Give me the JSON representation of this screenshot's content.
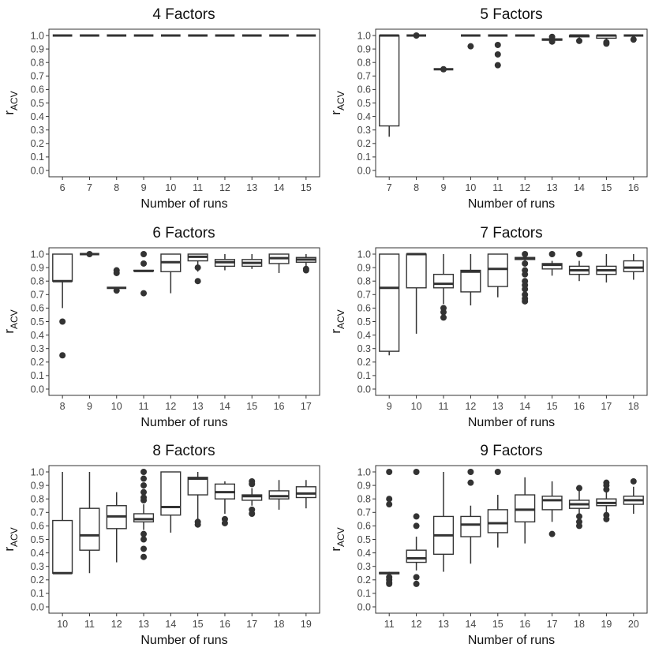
{
  "chart_data": [
    {
      "type": "box",
      "title": "4 Factors",
      "xlabel": "Number of runs",
      "ylabel": "r",
      "ylabel_subscript": "ACV",
      "ylim": [
        0,
        1
      ],
      "yticks": [
        "0.0",
        "0.1",
        "0.2",
        "0.3",
        "0.4",
        "0.5",
        "0.6",
        "0.7",
        "0.8",
        "0.9",
        "1.0"
      ],
      "categories": [
        "6",
        "7",
        "8",
        "9",
        "10",
        "11",
        "12",
        "13",
        "14",
        "15"
      ],
      "boxes": [
        {
          "q1": 1,
          "median": 1,
          "q3": 1,
          "whisker_low": 1,
          "whisker_high": 1,
          "outliers": []
        },
        {
          "q1": 1,
          "median": 1,
          "q3": 1,
          "whisker_low": 1,
          "whisker_high": 1,
          "outliers": []
        },
        {
          "q1": 1,
          "median": 1,
          "q3": 1,
          "whisker_low": 1,
          "whisker_high": 1,
          "outliers": []
        },
        {
          "q1": 1,
          "median": 1,
          "q3": 1,
          "whisker_low": 1,
          "whisker_high": 1,
          "outliers": []
        },
        {
          "q1": 1,
          "median": 1,
          "q3": 1,
          "whisker_low": 1,
          "whisker_high": 1,
          "outliers": []
        },
        {
          "q1": 1,
          "median": 1,
          "q3": 1,
          "whisker_low": 1,
          "whisker_high": 1,
          "outliers": []
        },
        {
          "q1": 1,
          "median": 1,
          "q3": 1,
          "whisker_low": 1,
          "whisker_high": 1,
          "outliers": []
        },
        {
          "q1": 1,
          "median": 1,
          "q3": 1,
          "whisker_low": 1,
          "whisker_high": 1,
          "outliers": []
        },
        {
          "q1": 1,
          "median": 1,
          "q3": 1,
          "whisker_low": 1,
          "whisker_high": 1,
          "outliers": []
        },
        {
          "q1": 1,
          "median": 1,
          "q3": 1,
          "whisker_low": 1,
          "whisker_high": 1,
          "outliers": []
        }
      ]
    },
    {
      "type": "box",
      "title": "5 Factors",
      "xlabel": "Number of runs",
      "ylabel": "r",
      "ylabel_subscript": "ACV",
      "ylim": [
        0,
        1
      ],
      "yticks": [
        "0.0",
        "0.1",
        "0.2",
        "0.3",
        "0.4",
        "0.5",
        "0.6",
        "0.7",
        "0.8",
        "0.9",
        "1.0"
      ],
      "categories": [
        "7",
        "8",
        "9",
        "10",
        "11",
        "12",
        "13",
        "14",
        "15",
        "16"
      ],
      "boxes": [
        {
          "q1": 0.33,
          "median": 1,
          "q3": 1,
          "whisker_low": 0.25,
          "whisker_high": 1,
          "outliers": []
        },
        {
          "q1": 1,
          "median": 1,
          "q3": 1,
          "whisker_low": 1,
          "whisker_high": 1,
          "outliers": [
            1
          ]
        },
        {
          "q1": 0.75,
          "median": 0.75,
          "q3": 0.75,
          "whisker_low": 0.75,
          "whisker_high": 0.75,
          "outliers": [
            0.75
          ]
        },
        {
          "q1": 1,
          "median": 1,
          "q3": 1,
          "whisker_low": 1,
          "whisker_high": 1,
          "outliers": [
            0.92
          ]
        },
        {
          "q1": 1,
          "median": 1,
          "q3": 1,
          "whisker_low": 1,
          "whisker_high": 1,
          "outliers": [
            0.93,
            0.86,
            0.78
          ]
        },
        {
          "q1": 1,
          "median": 1,
          "q3": 1,
          "whisker_low": 1,
          "whisker_high": 1,
          "outliers": []
        },
        {
          "q1": 0.965,
          "median": 0.97,
          "q3": 0.975,
          "whisker_low": 0.96,
          "whisker_high": 0.98,
          "outliers": [
            0.955,
            0.99
          ]
        },
        {
          "q1": 0.99,
          "median": 1,
          "q3": 1,
          "whisker_low": 0.98,
          "whisker_high": 1,
          "outliers": [
            0.96
          ]
        },
        {
          "q1": 0.98,
          "median": 1,
          "q3": 1,
          "whisker_low": 0.97,
          "whisker_high": 1,
          "outliers": [
            0.95,
            0.94
          ]
        },
        {
          "q1": 1,
          "median": 1,
          "q3": 1,
          "whisker_low": 1,
          "whisker_high": 1,
          "outliers": [
            0.97
          ]
        }
      ]
    },
    {
      "type": "box",
      "title": "6 Factors",
      "xlabel": "Number of runs",
      "ylabel": "r",
      "ylabel_subscript": "ACV",
      "ylim": [
        0,
        1
      ],
      "yticks": [
        "0.0",
        "0.1",
        "0.2",
        "0.3",
        "0.4",
        "0.5",
        "0.6",
        "0.7",
        "0.8",
        "0.9",
        "1.0"
      ],
      "categories": [
        "8",
        "9",
        "10",
        "11",
        "12",
        "13",
        "14",
        "15",
        "16",
        "17"
      ],
      "boxes": [
        {
          "q1": 0.8,
          "median": 0.8,
          "q3": 1,
          "whisker_low": 0.6,
          "whisker_high": 1,
          "outliers": [
            0.5,
            0.25
          ]
        },
        {
          "q1": 1,
          "median": 1,
          "q3": 1,
          "whisker_low": 1,
          "whisker_high": 1,
          "outliers": [
            1
          ]
        },
        {
          "q1": 0.75,
          "median": 0.75,
          "q3": 0.75,
          "whisker_low": 0.75,
          "whisker_high": 0.75,
          "outliers": [
            0.73,
            0.86,
            0.88
          ]
        },
        {
          "q1": 0.875,
          "median": 0.875,
          "q3": 0.88,
          "whisker_low": 0.875,
          "whisker_high": 0.88,
          "outliers": [
            1,
            0.93,
            0.71
          ]
        },
        {
          "q1": 0.87,
          "median": 0.94,
          "q3": 1,
          "whisker_low": 0.71,
          "whisker_high": 1,
          "outliers": []
        },
        {
          "q1": 0.95,
          "median": 0.98,
          "q3": 1,
          "whisker_low": 0.87,
          "whisker_high": 1,
          "outliers": [
            0.9,
            0.8
          ]
        },
        {
          "q1": 0.91,
          "median": 0.94,
          "q3": 0.96,
          "whisker_low": 0.88,
          "whisker_high": 1,
          "outliers": []
        },
        {
          "q1": 0.91,
          "median": 0.935,
          "q3": 0.96,
          "whisker_low": 0.89,
          "whisker_high": 1,
          "outliers": []
        },
        {
          "q1": 0.93,
          "median": 0.97,
          "q3": 1,
          "whisker_low": 0.86,
          "whisker_high": 1,
          "outliers": []
        },
        {
          "q1": 0.94,
          "median": 0.96,
          "q3": 0.975,
          "whisker_low": 0.9,
          "whisker_high": 1,
          "outliers": [
            0.89,
            0.88
          ]
        }
      ]
    },
    {
      "type": "box",
      "title": "7 Factors",
      "xlabel": "Number of runs",
      "ylabel": "r",
      "ylabel_subscript": "ACV",
      "ylim": [
        0,
        1
      ],
      "yticks": [
        "0.0",
        "0.1",
        "0.2",
        "0.3",
        "0.4",
        "0.5",
        "0.6",
        "0.7",
        "0.8",
        "0.9",
        "1.0"
      ],
      "categories": [
        "9",
        "10",
        "11",
        "12",
        "13",
        "14",
        "15",
        "16",
        "17",
        "18"
      ],
      "boxes": [
        {
          "q1": 0.28,
          "median": 0.75,
          "q3": 1,
          "whisker_low": 0.25,
          "whisker_high": 1,
          "outliers": []
        },
        {
          "q1": 0.75,
          "median": 1,
          "q3": 1,
          "whisker_low": 0.41,
          "whisker_high": 1,
          "outliers": []
        },
        {
          "q1": 0.75,
          "median": 0.78,
          "q3": 0.85,
          "whisker_low": 0.63,
          "whisker_high": 1,
          "outliers": [
            0.6,
            0.57,
            0.53
          ]
        },
        {
          "q1": 0.72,
          "median": 0.87,
          "q3": 0.88,
          "whisker_low": 0.62,
          "whisker_high": 1,
          "outliers": []
        },
        {
          "q1": 0.76,
          "median": 0.89,
          "q3": 1,
          "whisker_low": 0.68,
          "whisker_high": 1,
          "outliers": []
        },
        {
          "q1": 0.96,
          "median": 0.97,
          "q3": 0.975,
          "whisker_low": 0.94,
          "whisker_high": 1,
          "outliers": [
            1,
            0.93,
            0.88,
            0.85,
            0.8,
            0.77,
            0.74,
            0.7,
            0.67,
            0.65
          ]
        },
        {
          "q1": 0.89,
          "median": 0.92,
          "q3": 0.93,
          "whisker_low": 0.84,
          "whisker_high": 0.95,
          "outliers": [
            1
          ]
        },
        {
          "q1": 0.85,
          "median": 0.88,
          "q3": 0.91,
          "whisker_low": 0.8,
          "whisker_high": 0.95,
          "outliers": [
            1
          ]
        },
        {
          "q1": 0.85,
          "median": 0.88,
          "q3": 0.91,
          "whisker_low": 0.79,
          "whisker_high": 1,
          "outliers": []
        },
        {
          "q1": 0.87,
          "median": 0.9,
          "q3": 0.95,
          "whisker_low": 0.81,
          "whisker_high": 1,
          "outliers": []
        }
      ]
    },
    {
      "type": "box",
      "title": "8 Factors",
      "xlabel": "Number of runs",
      "ylabel": "r",
      "ylabel_subscript": "ACV",
      "ylim": [
        0,
        1
      ],
      "yticks": [
        "0.0",
        "0.1",
        "0.2",
        "0.3",
        "0.4",
        "0.5",
        "0.6",
        "0.7",
        "0.8",
        "0.9",
        "1.0"
      ],
      "categories": [
        "10",
        "11",
        "12",
        "13",
        "14",
        "15",
        "16",
        "17",
        "18",
        "19"
      ],
      "boxes": [
        {
          "q1": 0.25,
          "median": 0.25,
          "q3": 0.64,
          "whisker_low": 0.25,
          "whisker_high": 1,
          "outliers": []
        },
        {
          "q1": 0.42,
          "median": 0.53,
          "q3": 0.73,
          "whisker_low": 0.25,
          "whisker_high": 1,
          "outliers": []
        },
        {
          "q1": 0.58,
          "median": 0.67,
          "q3": 0.75,
          "whisker_low": 0.33,
          "whisker_high": 0.85,
          "outliers": []
        },
        {
          "q1": 0.63,
          "median": 0.65,
          "q3": 0.69,
          "whisker_low": 0.57,
          "whisker_high": 0.76,
          "outliers": [
            1,
            0.95,
            0.9,
            0.85,
            0.81,
            0.79,
            0.54,
            0.5,
            0.43,
            0.37
          ]
        },
        {
          "q1": 0.68,
          "median": 0.74,
          "q3": 1,
          "whisker_low": 0.55,
          "whisker_high": 1,
          "outliers": []
        },
        {
          "q1": 0.83,
          "median": 0.95,
          "q3": 0.96,
          "whisker_low": 0.65,
          "whisker_high": 1,
          "outliers": [
            0.63,
            0.61
          ]
        },
        {
          "q1": 0.8,
          "median": 0.85,
          "q3": 0.91,
          "whisker_low": 0.69,
          "whisker_high": 0.93,
          "outliers": [
            0.65,
            0.62
          ]
        },
        {
          "q1": 0.79,
          "median": 0.82,
          "q3": 0.83,
          "whisker_low": 0.75,
          "whisker_high": 0.88,
          "outliers": [
            0.93,
            0.91,
            0.72,
            0.69
          ]
        },
        {
          "q1": 0.8,
          "median": 0.82,
          "q3": 0.86,
          "whisker_low": 0.72,
          "whisker_high": 0.94,
          "outliers": []
        },
        {
          "q1": 0.81,
          "median": 0.84,
          "q3": 0.89,
          "whisker_low": 0.73,
          "whisker_high": 0.94,
          "outliers": []
        }
      ]
    },
    {
      "type": "box",
      "title": "9 Factors",
      "xlabel": "Number of runs",
      "ylabel": "r",
      "ylabel_subscript": "ACV",
      "ylim": [
        0,
        1
      ],
      "yticks": [
        "0.0",
        "0.1",
        "0.2",
        "0.3",
        "0.4",
        "0.5",
        "0.6",
        "0.7",
        "0.8",
        "0.9",
        "1.0"
      ],
      "categories": [
        "11",
        "12",
        "13",
        "14",
        "15",
        "16",
        "17",
        "18",
        "19",
        "20"
      ],
      "boxes": [
        {
          "q1": 0.245,
          "median": 0.25,
          "q3": 0.255,
          "whisker_low": 0.24,
          "whisker_high": 0.26,
          "outliers": [
            1,
            0.8,
            0.76,
            0.22,
            0.2,
            0.18,
            0.17
          ]
        },
        {
          "q1": 0.33,
          "median": 0.36,
          "q3": 0.42,
          "whisker_low": 0.27,
          "whisker_high": 0.52,
          "outliers": [
            1,
            0.67,
            0.6,
            0.22,
            0.17
          ]
        },
        {
          "q1": 0.39,
          "median": 0.53,
          "q3": 0.67,
          "whisker_low": 0.26,
          "whisker_high": 1,
          "outliers": []
        },
        {
          "q1": 0.52,
          "median": 0.61,
          "q3": 0.67,
          "whisker_low": 0.32,
          "whisker_high": 0.75,
          "outliers": [
            1,
            0.92
          ]
        },
        {
          "q1": 0.55,
          "median": 0.62,
          "q3": 0.72,
          "whisker_low": 0.44,
          "whisker_high": 0.83,
          "outliers": [
            1
          ]
        },
        {
          "q1": 0.63,
          "median": 0.72,
          "q3": 0.83,
          "whisker_low": 0.47,
          "whisker_high": 0.96,
          "outliers": []
        },
        {
          "q1": 0.72,
          "median": 0.79,
          "q3": 0.82,
          "whisker_low": 0.63,
          "whisker_high": 0.93,
          "outliers": [
            0.54
          ]
        },
        {
          "q1": 0.73,
          "median": 0.76,
          "q3": 0.79,
          "whisker_low": 0.69,
          "whisker_high": 0.86,
          "outliers": [
            0.88,
            0.67,
            0.63,
            0.6
          ]
        },
        {
          "q1": 0.75,
          "median": 0.77,
          "q3": 0.8,
          "whisker_low": 0.7,
          "whisker_high": 0.85,
          "outliers": [
            0.92,
            0.9,
            0.87,
            0.68,
            0.65
          ]
        },
        {
          "q1": 0.76,
          "median": 0.79,
          "q3": 0.82,
          "whisker_low": 0.69,
          "whisker_high": 0.89,
          "outliers": [
            0.93
          ]
        }
      ]
    }
  ]
}
